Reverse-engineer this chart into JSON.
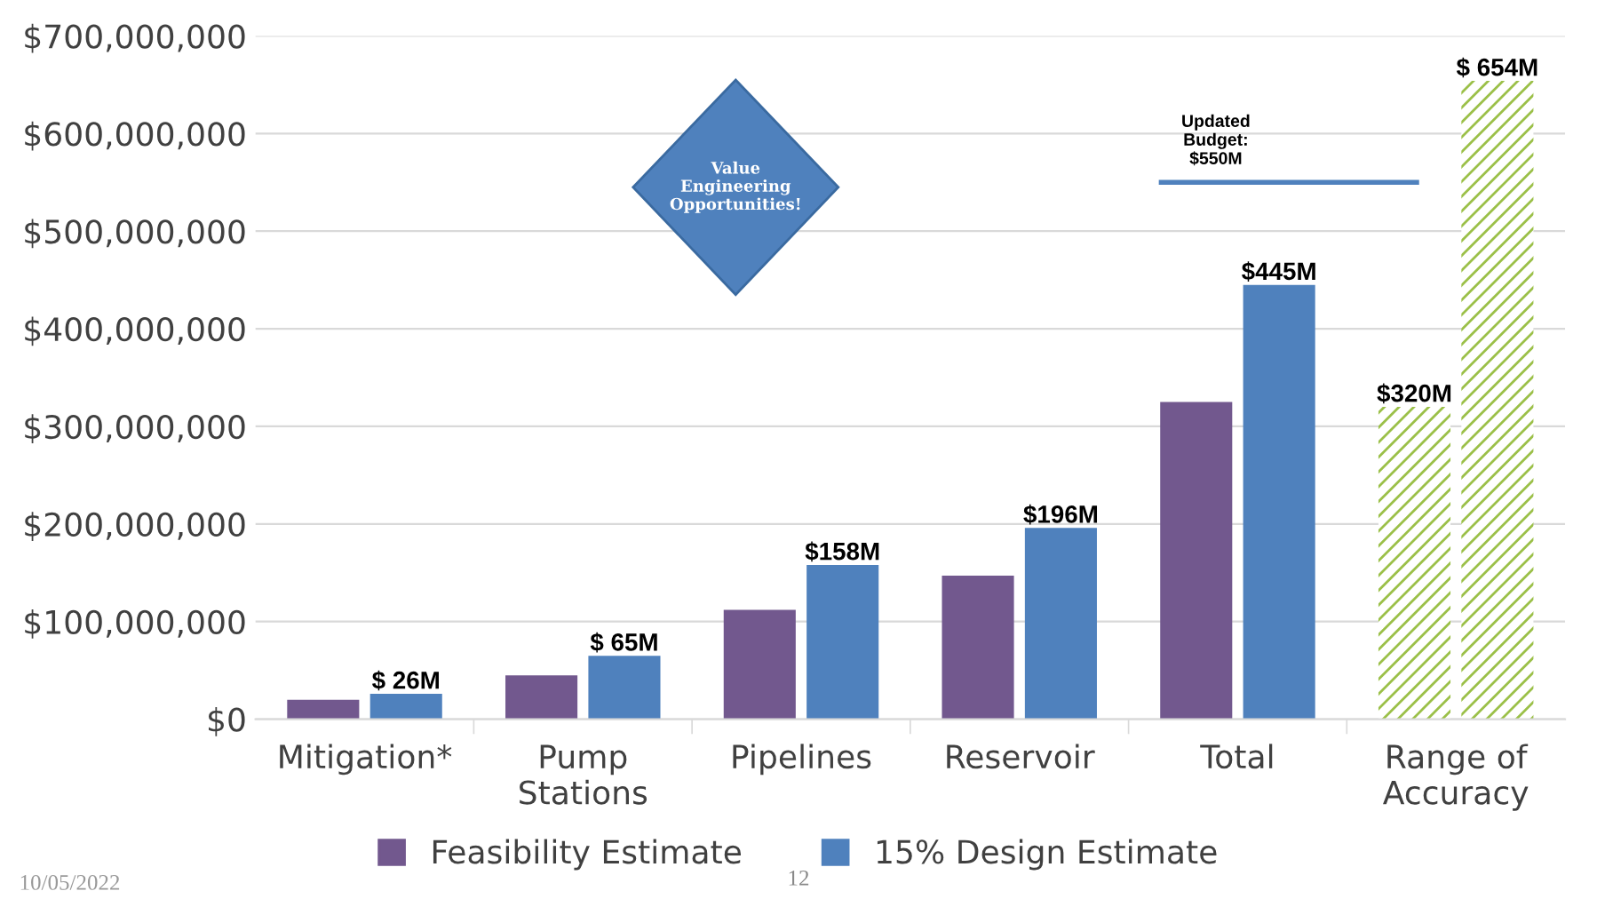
{
  "chart_data": {
    "type": "bar",
    "categories": [
      "Mitigation*",
      "Pump\nStations",
      "Pipelines",
      "Reservoir",
      "Total",
      "Range of\nAccuracy"
    ],
    "series": [
      {
        "name": "Feasibility Estimate",
        "color": "#72588e",
        "colors": [
          "#72588e",
          "#72588e",
          "#72588e",
          "#72588e",
          "#72588e",
          "#9bc048"
        ],
        "values": [
          20000000,
          45000000,
          112000000,
          147000000,
          325000000,
          320000000
        ],
        "value_labels": [
          null,
          null,
          null,
          null,
          null,
          "$320M"
        ]
      },
      {
        "name": "15% Design Estimate",
        "color": "#4f81bd",
        "colors": [
          "#4f81bd",
          "#4f81bd",
          "#4f81bd",
          "#4f81bd",
          "#4f81bd",
          "#9bc048"
        ],
        "values": [
          26000000,
          65000000,
          158000000,
          196000000,
          445000000,
          654000000
        ],
        "value_labels": [
          "$ 26M",
          "$ 65M",
          "$158M",
          "$196M",
          "$445M",
          "$ 654M"
        ]
      }
    ],
    "ylim": [
      0,
      700000000
    ],
    "yticks": [
      {
        "value": 0,
        "label": "$0"
      },
      {
        "value": 100000000,
        "label": "$100,000,000"
      },
      {
        "value": 200000000,
        "label": "$200,000,000"
      },
      {
        "value": 300000000,
        "label": "$300,000,000"
      },
      {
        "value": 400000000,
        "label": "$400,000,000"
      },
      {
        "value": 500000000,
        "label": "$500,000,000"
      },
      {
        "value": 600000000,
        "label": "$600,000,000"
      },
      {
        "value": 700000000,
        "label": "$700,000,000"
      }
    ],
    "ref_lines": [
      {
        "axis": "y",
        "value": 550000000,
        "label": "Updated\nBudget:\n$550M",
        "color": "#4f81bd"
      }
    ],
    "annotations": [
      "Value\nEngineering\nOpportunities!",
      "10/05/2022",
      "12"
    ],
    "grid": "y",
    "legend": "bottom"
  }
}
